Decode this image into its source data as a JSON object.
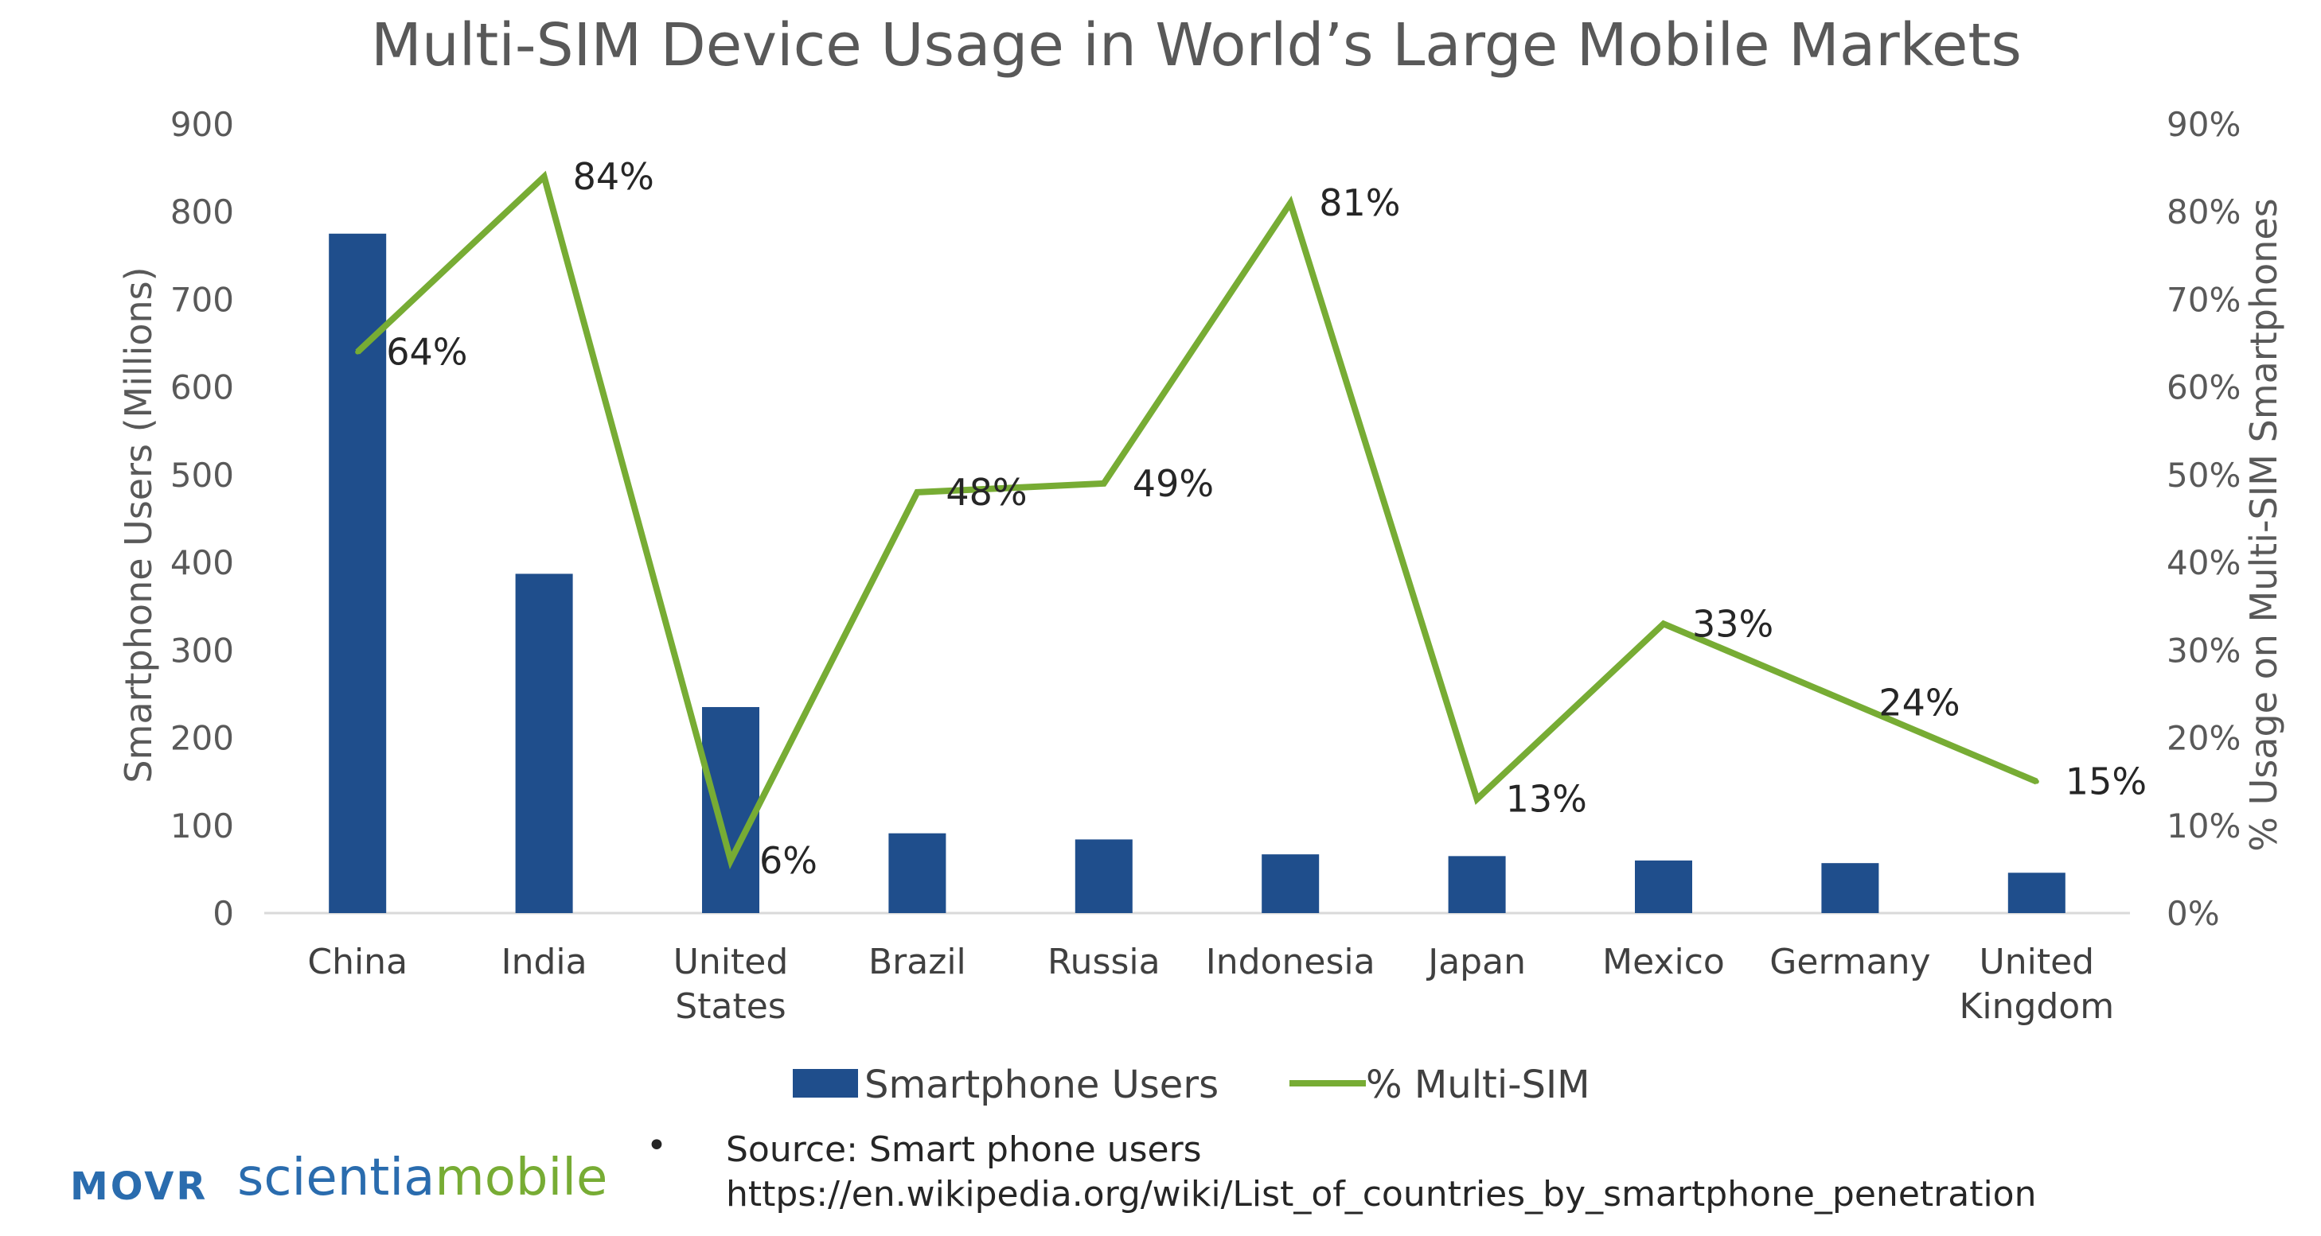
{
  "chart_data": {
    "type": "bar",
    "title": "Multi-SIM Device Usage in World’s Large Mobile Markets",
    "categories": [
      [
        "China"
      ],
      [
        "India"
      ],
      [
        "United",
        "States"
      ],
      [
        "Brazil"
      ],
      [
        "Russia"
      ],
      [
        "Indonesia"
      ],
      [
        "Japan"
      ],
      [
        "Mexico"
      ],
      [
        "Germany"
      ],
      [
        "United",
        "Kingdom"
      ]
    ],
    "series": [
      {
        "name": "Smartphone Users",
        "type": "bar",
        "axis": "left",
        "color": "#1f4e8c",
        "values": [
          775,
          387,
          235,
          91,
          84,
          67,
          65,
          60,
          57,
          46
        ]
      },
      {
        "name": "% Multi-SIM",
        "type": "line",
        "axis": "right",
        "color": "#77ac34",
        "values": [
          64,
          84,
          6,
          48,
          49,
          81,
          13,
          33,
          24,
          15
        ],
        "labels": [
          "64%",
          "84%",
          "6%",
          "48%",
          "49%",
          "81%",
          "13%",
          "33%",
          "24%",
          "15%"
        ]
      }
    ],
    "ylabel": "Smartphone Users (Millions)",
    "ylim": [
      0,
      900
    ],
    "yticks": [
      "0",
      "100",
      "200",
      "300",
      "400",
      "500",
      "600",
      "700",
      "800",
      "900"
    ],
    "y2label": "% Usage on Multi-SIM Smartphones",
    "y2lim": [
      0,
      90
    ],
    "y2ticks": [
      "0%",
      "10%",
      "20%",
      "30%",
      "40%",
      "50%",
      "60%",
      "70%",
      "80%",
      "90%"
    ],
    "grid": false,
    "legend": "bottom"
  },
  "footer": {
    "bullet": "•",
    "source_line1": "Source: Smart phone users",
    "source_line2": "https://en.wikipedia.org/wiki/List_of_countries_by_smartphone_penetration",
    "logo_movr": "MOVR",
    "logo_brand_a": "scientia",
    "logo_brand_b": "mobile",
    "brand_color_a": "#2a6cae",
    "brand_color_b": "#77ac34"
  }
}
